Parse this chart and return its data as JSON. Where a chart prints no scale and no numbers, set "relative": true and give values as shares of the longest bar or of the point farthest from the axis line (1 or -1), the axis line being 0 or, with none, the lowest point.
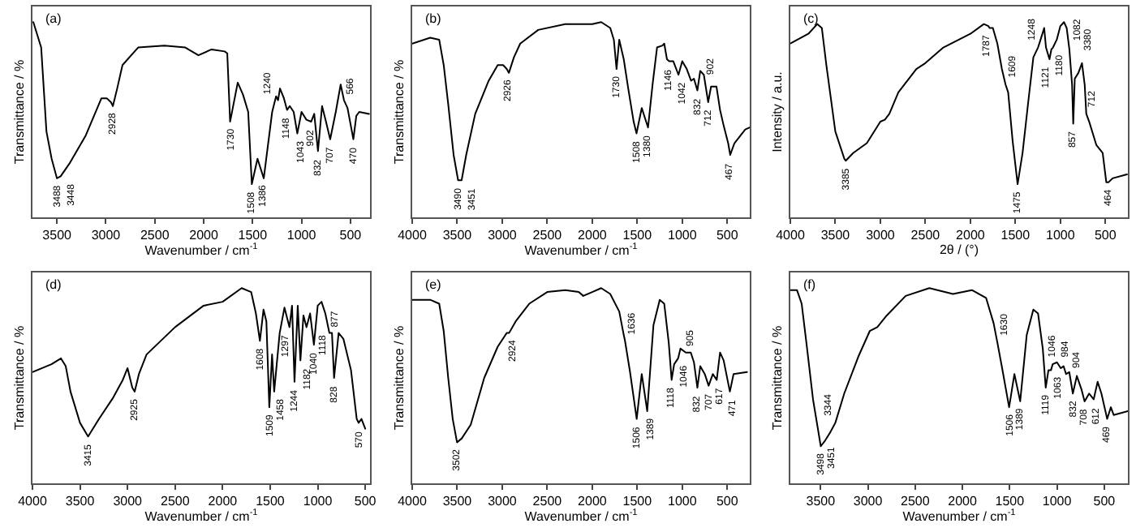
{
  "chart_data": [
    {
      "type": "line",
      "title": "(a)",
      "xlabel": "Wavenumber / cm$^{-1}$",
      "ylabel": "Transmittance / %",
      "relative": true,
      "xlim": [
        3750,
        300
      ],
      "xticks": [
        3500,
        3000,
        2500,
        2000,
        1500,
        1000,
        500
      ],
      "x": [
        3741,
        3661,
        3607,
        3554,
        3500,
        3462,
        3366,
        3205,
        3045,
        2991,
        2948,
        2928,
        2884,
        2830,
        2670,
        2402,
        2188,
        2054,
        1920,
        1786,
        1759,
        1730,
        1652,
        1599,
        1545,
        1508,
        1450,
        1386,
        1300,
        1260,
        1240,
        1220,
        1180,
        1148,
        1120,
        1080,
        1043,
        1000,
        950,
        902,
        870,
        832,
        790,
        750,
        707,
        650,
        600,
        566,
        530,
        470,
        440,
        410,
        310
      ],
      "series": [
        {
          "color": "#000000",
          "values": [
            1,
            0.87,
            0.44,
            0.3,
            0.2,
            0.21,
            0.28,
            0.42,
            0.61,
            0.61,
            0.59,
            0.57,
            0.66,
            0.78,
            0.87,
            0.88,
            0.87,
            0.83,
            0.86,
            0.85,
            0.84,
            0.49,
            0.69,
            0.63,
            0.54,
            0.17,
            0.3,
            0.2,
            0.54,
            0.62,
            0.6,
            0.66,
            0.61,
            0.55,
            0.57,
            0.54,
            0.43,
            0.54,
            0.5,
            0.49,
            0.53,
            0.34,
            0.57,
            0.49,
            0.4,
            0.54,
            0.68,
            0.6,
            0.56,
            0.4,
            0.52,
            0.54,
            0.53
          ]
        }
      ],
      "annotations": [
        {
          "text": "3488",
          "x": 3488,
          "y": 0.2
        },
        {
          "text": "3448",
          "x": 3448,
          "y": 0.21
        },
        {
          "text": "2928",
          "x": 2928,
          "y": 0.57
        },
        {
          "text": "1730",
          "x": 1730,
          "y": 0.49
        },
        {
          "text": "1508",
          "x": 1508,
          "y": 0.17
        },
        {
          "text": "1386",
          "x": 1386,
          "y": 0.2
        },
        {
          "text": "1240",
          "x": 1240,
          "y": 0.6
        },
        {
          "text": "1148",
          "x": 1148,
          "y": 0.55
        },
        {
          "text": "1043",
          "x": 1043,
          "y": 0.43
        },
        {
          "text": "902",
          "x": 902,
          "y": 0.49
        },
        {
          "text": "832",
          "x": 832,
          "y": 0.34
        },
        {
          "text": "707",
          "x": 707,
          "y": 0.4
        },
        {
          "text": "566",
          "x": 566,
          "y": 0.6
        },
        {
          "text": "470",
          "x": 470,
          "y": 0.4
        }
      ]
    },
    {
      "type": "line",
      "title": "(b)",
      "xlabel": "Wavenumber / cm$^{-1}$",
      "ylabel": "Transmittance / %",
      "relative": true,
      "xlim": [
        4000,
        250
      ],
      "xticks": [
        4000,
        3500,
        3000,
        2500,
        2000,
        1500,
        1000,
        500
      ],
      "x": [
        4000,
        3800,
        3700,
        3650,
        3600,
        3540,
        3490,
        3451,
        3400,
        3300,
        3150,
        3050,
        2990,
        2950,
        2926,
        2870,
        2800,
        2600,
        2300,
        2000,
        1900,
        1800,
        1760,
        1730,
        1700,
        1650,
        1600,
        1540,
        1508,
        1450,
        1380,
        1330,
        1280,
        1220,
        1200,
        1170,
        1146,
        1100,
        1042,
        1000,
        950,
        902,
        870,
        832,
        800,
        760,
        712,
        680,
        620,
        580,
        540,
        490,
        467,
        420,
        300,
        250
      ],
      "series": [
        {
          "color": "#000000",
          "values": [
            0.89,
            0.92,
            0.91,
            0.78,
            0.58,
            0.32,
            0.19,
            0.19,
            0.32,
            0.53,
            0.7,
            0.78,
            0.78,
            0.76,
            0.74,
            0.82,
            0.89,
            0.96,
            0.99,
            0.99,
            1,
            0.97,
            0.91,
            0.76,
            0.91,
            0.81,
            0.66,
            0.49,
            0.43,
            0.56,
            0.46,
            0.68,
            0.87,
            0.88,
            0.89,
            0.81,
            0.8,
            0.8,
            0.73,
            0.8,
            0.76,
            0.7,
            0.71,
            0.65,
            0.75,
            0.73,
            0.59,
            0.67,
            0.67,
            0.55,
            0.47,
            0.38,
            0.32,
            0.38,
            0.45,
            0.46
          ]
        }
      ],
      "annotations": [
        {
          "text": "3490",
          "x": 3490,
          "y": 0.19
        },
        {
          "text": "3451",
          "x": 3451,
          "y": 0.19
        },
        {
          "text": "2926",
          "x": 2926,
          "y": 0.74
        },
        {
          "text": "1730",
          "x": 1730,
          "y": 0.76
        },
        {
          "text": "1508",
          "x": 1508,
          "y": 0.43
        },
        {
          "text": "1380",
          "x": 1380,
          "y": 0.46
        },
        {
          "text": "1146",
          "x": 1146,
          "y": 0.8
        },
        {
          "text": "1042",
          "x": 1042,
          "y": 0.73
        },
        {
          "text": "902",
          "x": 902,
          "y": 0.7
        },
        {
          "text": "832",
          "x": 832,
          "y": 0.65
        },
        {
          "text": "712",
          "x": 712,
          "y": 0.59
        },
        {
          "text": "467",
          "x": 467,
          "y": 0.32
        }
      ]
    },
    {
      "type": "line",
      "title": "(c)",
      "xlabel": "2θ / (°)",
      "ylabel": "Intensity / a.u.",
      "relative": true,
      "xlim": [
        4000,
        250
      ],
      "xticks": [
        4000,
        3500,
        3000,
        2500,
        2000,
        1500,
        1000,
        500
      ],
      "x": [
        4000,
        3800,
        3700,
        3650,
        3600,
        3500,
        3400,
        3385,
        3300,
        3150,
        3000,
        2950,
        2900,
        2800,
        2600,
        2500,
        2300,
        2000,
        1850,
        1800,
        1787,
        1750,
        1700,
        1650,
        1609,
        1580,
        1530,
        1475,
        1420,
        1350,
        1300,
        1248,
        1220,
        1180,
        1160,
        1121,
        1100,
        1082,
        1040,
        1000,
        960,
        930,
        900,
        870,
        857,
        840,
        800,
        760,
        730,
        712,
        680,
        600,
        530,
        490,
        464,
        420,
        260
      ],
      "series": [
        {
          "color": "#000000",
          "values": [
            0.89,
            0.94,
            0.99,
            0.97,
            0.78,
            0.44,
            0.3,
            0.29,
            0.33,
            0.38,
            0.49,
            0.5,
            0.53,
            0.64,
            0.76,
            0.79,
            0.87,
            0.94,
            0.99,
            0.98,
            0.97,
            0.97,
            0.89,
            0.76,
            0.68,
            0.64,
            0.39,
            0.17,
            0.33,
            0.62,
            0.82,
            0.87,
            0.91,
            0.97,
            0.87,
            0.81,
            0.86,
            0.87,
            0.91,
            0.98,
            1,
            0.97,
            0.86,
            0.68,
            0.48,
            0.71,
            0.74,
            0.79,
            0.68,
            0.53,
            0.49,
            0.37,
            0.33,
            0.18,
            0.18,
            0.2,
            0.22
          ]
        }
      ],
      "annotations": [
        {
          "text": "3385",
          "x": 3385,
          "y": 0.29
        },
        {
          "text": "1787",
          "x": 1787,
          "y": 0.97
        },
        {
          "text": "1609",
          "x": 1609,
          "y": 0.68
        },
        {
          "text": "1475",
          "x": 1475,
          "y": 0.17
        },
        {
          "text": "1248",
          "x": 1248,
          "y": 0.87
        },
        {
          "text": "1180",
          "x": 1160,
          "y": 0.87
        },
        {
          "text": "1121",
          "x": 1121,
          "y": 0.81
        },
        {
          "text": "1082",
          "x": 1082,
          "y": 0.87
        },
        {
          "text": "3380",
          "x": 960,
          "y": 1
        },
        {
          "text": "857",
          "x": 857,
          "y": 0.48
        },
        {
          "text": "712",
          "x": 712,
          "y": 0.53
        },
        {
          "text": "464",
          "x": 464,
          "y": 0.18
        }
      ]
    },
    {
      "type": "line",
      "title": "(d)",
      "xlabel": "Wavenumber / cm$^{-1}$",
      "ylabel": "Transmittance / %",
      "relative": true,
      "xlim": [
        4000,
        450
      ],
      "xticks": [
        4000,
        3500,
        3000,
        2500,
        2000,
        1500,
        1000,
        500
      ],
      "x": [
        4000,
        3800,
        3700,
        3650,
        3600,
        3500,
        3415,
        3300,
        3150,
        3050,
        3000,
        2950,
        2925,
        2880,
        2800,
        2500,
        2200,
        2000,
        1800,
        1700,
        1650,
        1608,
        1570,
        1540,
        1509,
        1480,
        1458,
        1400,
        1350,
        1297,
        1270,
        1244,
        1210,
        1182,
        1150,
        1118,
        1080,
        1040,
        1000,
        960,
        920,
        877,
        850,
        828,
        780,
        730,
        650,
        590,
        570,
        540,
        500
      ],
      "series": [
        {
          "color": "#000000",
          "values": [
            0.57,
            0.61,
            0.64,
            0.6,
            0.47,
            0.31,
            0.24,
            0.33,
            0.44,
            0.53,
            0.59,
            0.49,
            0.47,
            0.56,
            0.66,
            0.8,
            0.91,
            0.93,
            1,
            0.98,
            0.87,
            0.73,
            0.89,
            0.83,
            0.39,
            0.66,
            0.47,
            0.77,
            0.9,
            0.8,
            0.91,
            0.52,
            0.91,
            0.63,
            0.86,
            0.8,
            0.87,
            0.71,
            0.91,
            0.93,
            0.87,
            0.77,
            0.77,
            0.54,
            0.77,
            0.74,
            0.58,
            0.33,
            0.31,
            0.33,
            0.28
          ]
        }
      ],
      "annotations": [
        {
          "text": "3415",
          "x": 3415,
          "y": 0.24
        },
        {
          "text": "2925",
          "x": 2925,
          "y": 0.47
        },
        {
          "text": "1608",
          "x": 1608,
          "y": 0.73
        },
        {
          "text": "1509",
          "x": 1509,
          "y": 0.39
        },
        {
          "text": "1458",
          "x": 1458,
          "y": 0.47
        },
        {
          "text": "1297",
          "x": 1297,
          "y": 0.8
        },
        {
          "text": "1244",
          "x": 1244,
          "y": 0.52
        },
        {
          "text": "1182",
          "x": 1182,
          "y": 0.63
        },
        {
          "text": "1118",
          "x": 1118,
          "y": 0.8
        },
        {
          "text": "1040",
          "x": 1040,
          "y": 0.71
        },
        {
          "text": "877",
          "x": 877,
          "y": 0.77
        },
        {
          "text": "828",
          "x": 828,
          "y": 0.54
        },
        {
          "text": "570",
          "x": 570,
          "y": 0.31
        }
      ]
    },
    {
      "type": "line",
      "title": "(e)",
      "xlabel": "Wavenumber / cm$^{-1}$",
      "ylabel": "Transmittance / %",
      "relative": true,
      "xlim": [
        4000,
        250
      ],
      "xticks": [
        4000,
        3500,
        3000,
        2500,
        2000,
        1500,
        1000,
        500
      ],
      "x": [
        4000,
        3800,
        3700,
        3650,
        3600,
        3550,
        3502,
        3450,
        3350,
        3200,
        3050,
        2950,
        2924,
        2850,
        2700,
        2500,
        2300,
        2150,
        2100,
        2000,
        1900,
        1800,
        1700,
        1650,
        1636,
        1580,
        1506,
        1450,
        1389,
        1320,
        1250,
        1200,
        1150,
        1118,
        1090,
        1046,
        1020,
        960,
        905,
        870,
        832,
        800,
        750,
        707,
        660,
        617,
        580,
        540,
        471,
        430,
        280
      ],
      "series": [
        {
          "color": "#000000",
          "values": [
            0.94,
            0.94,
            0.92,
            0.78,
            0.54,
            0.33,
            0.21,
            0.23,
            0.3,
            0.54,
            0.7,
            0.77,
            0.77,
            0.83,
            0.92,
            0.98,
            0.99,
            0.98,
            0.96,
            0.98,
            1,
            0.97,
            0.88,
            0.76,
            0.73,
            0.57,
            0.33,
            0.56,
            0.37,
            0.81,
            0.94,
            0.92,
            0.72,
            0.53,
            0.61,
            0.64,
            0.69,
            0.67,
            0.67,
            0.62,
            0.49,
            0.6,
            0.56,
            0.5,
            0.56,
            0.53,
            0.67,
            0.63,
            0.47,
            0.56,
            0.57
          ]
        }
      ],
      "annotations": [
        {
          "text": "3502",
          "x": 3502,
          "y": 0.21
        },
        {
          "text": "2924",
          "x": 2924,
          "y": 0.77
        },
        {
          "text": "1636",
          "x": 1636,
          "y": 0.73
        },
        {
          "text": "1506",
          "x": 1506,
          "y": 0.33
        },
        {
          "text": "1389",
          "x": 1389,
          "y": 0.37
        },
        {
          "text": "1118",
          "x": 1118,
          "y": 0.53
        },
        {
          "text": "1046",
          "x": 1046,
          "y": 0.64
        },
        {
          "text": "905",
          "x": 905,
          "y": 0.67
        },
        {
          "text": "832",
          "x": 832,
          "y": 0.49
        },
        {
          "text": "707",
          "x": 707,
          "y": 0.5
        },
        {
          "text": "617",
          "x": 617,
          "y": 0.53
        },
        {
          "text": "471",
          "x": 471,
          "y": 0.47
        }
      ]
    },
    {
      "type": "line",
      "title": "(f)",
      "xlabel": "Wavenumber / cm$^{-1}$",
      "ylabel": "Transmittance / %",
      "relative": true,
      "xlim": [
        3820,
        250
      ],
      "xticks": [
        3500,
        3000,
        2500,
        2000,
        1500,
        1000,
        500
      ],
      "x": [
        3820,
        3750,
        3700,
        3650,
        3580,
        3498,
        3451,
        3400,
        3344,
        3250,
        3100,
        2980,
        2900,
        2800,
        2600,
        2350,
        2100,
        1900,
        1750,
        1670,
        1630,
        1580,
        1506,
        1450,
        1389,
        1320,
        1250,
        1200,
        1150,
        1119,
        1090,
        1063,
        1046,
        1000,
        960,
        930,
        904,
        870,
        832,
        790,
        740,
        708,
        660,
        612,
        570,
        530,
        469,
        430,
        400,
        250
      ],
      "series": [
        {
          "color": "#000000",
          "values": [
            0.99,
            0.99,
            0.92,
            0.72,
            0.43,
            0.19,
            0.22,
            0.26,
            0.31,
            0.46,
            0.65,
            0.78,
            0.8,
            0.86,
            0.96,
            1,
            0.97,
            0.99,
            0.95,
            0.82,
            0.72,
            0.59,
            0.39,
            0.56,
            0.42,
            0.76,
            0.89,
            0.87,
            0.69,
            0.49,
            0.58,
            0.58,
            0.61,
            0.62,
            0.59,
            0.6,
            0.56,
            0.57,
            0.46,
            0.55,
            0.48,
            0.42,
            0.46,
            0.43,
            0.52,
            0.46,
            0.33,
            0.39,
            0.35,
            0.37
          ]
        }
      ],
      "annotations": [
        {
          "text": "3498",
          "x": 3498,
          "y": 0.19
        },
        {
          "text": "3451",
          "x": 3451,
          "y": 0.22
        },
        {
          "text": "3344",
          "x": 3344,
          "y": 0.31
        },
        {
          "text": "1630",
          "x": 1630,
          "y": 0.72
        },
        {
          "text": "1506",
          "x": 1506,
          "y": 0.39
        },
        {
          "text": "1389",
          "x": 1389,
          "y": 0.42
        },
        {
          "text": "1119",
          "x": 1119,
          "y": 0.49
        },
        {
          "text": "1063",
          "x": 1063,
          "y": 0.58
        },
        {
          "text": "1046",
          "x": 1046,
          "y": 0.61
        },
        {
          "text": "984",
          "x": 984,
          "y": 0.61
        },
        {
          "text": "904",
          "x": 904,
          "y": 0.56
        },
        {
          "text": "832",
          "x": 832,
          "y": 0.46
        },
        {
          "text": "708",
          "x": 708,
          "y": 0.42
        },
        {
          "text": "612",
          "x": 612,
          "y": 0.43
        },
        {
          "text": "469",
          "x": 469,
          "y": 0.33
        }
      ]
    }
  ]
}
